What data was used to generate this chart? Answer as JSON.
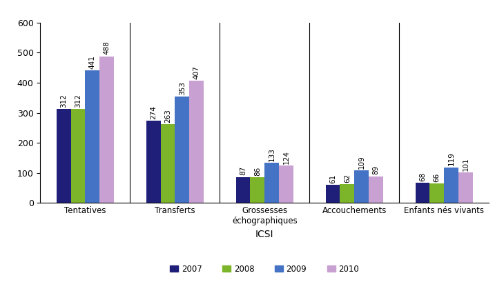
{
  "categories": [
    "Tentatives",
    "Transferts",
    "Grossesses\néchographiques",
    "Accouchements",
    "Enfants nés vivants"
  ],
  "years": [
    "2007",
    "2008",
    "2009",
    "2010"
  ],
  "values": {
    "2007": [
      312,
      274,
      87,
      61,
      68
    ],
    "2008": [
      312,
      263,
      86,
      62,
      66
    ],
    "2009": [
      441,
      353,
      133,
      109,
      119
    ],
    "2010": [
      488,
      407,
      124,
      89,
      101
    ]
  },
  "colors": {
    "2007": "#1F1F7A",
    "2008": "#7DB52A",
    "2009": "#4472C4",
    "2010": "#C8A0D2"
  },
  "xlabel": "ICSI",
  "ylim": [
    0,
    600
  ],
  "yticks": [
    0,
    100,
    200,
    300,
    400,
    500,
    600
  ],
  "bar_width": 0.16,
  "label_fontsize": 7.5,
  "legend_fontsize": 8.5,
  "xlabel_fontsize": 10,
  "ytick_fontsize": 9,
  "xtick_fontsize": 8.5
}
